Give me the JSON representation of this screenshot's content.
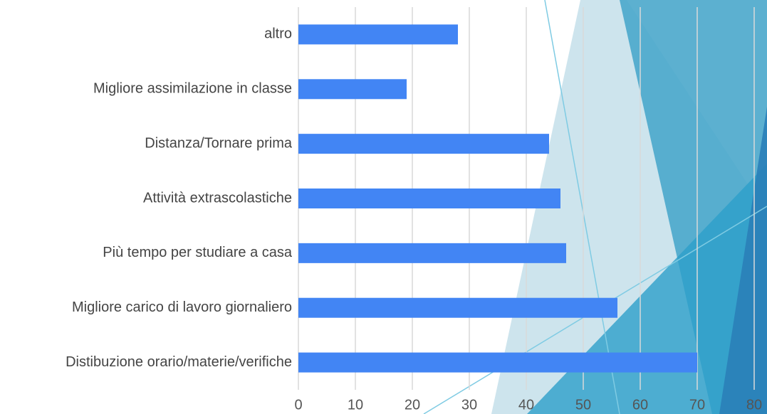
{
  "chart_data": {
    "type": "bar",
    "orientation": "horizontal",
    "categories": [
      "altro",
      "Migliore assimilazione in classe",
      "Distanza/Tornare prima",
      "Attività extrascolastiche",
      "Più tempo per studiare a casa",
      "Migliore carico di lavoro giornaliero",
      "Distibuzione orario/materie/verifiche"
    ],
    "values": [
      28,
      19,
      44,
      46,
      47,
      56,
      70
    ],
    "color": "#4285f4",
    "xlim": [
      0,
      80
    ],
    "xticks": [
      0,
      10,
      20,
      30,
      40,
      50,
      60,
      70,
      80
    ],
    "grid": true
  }
}
